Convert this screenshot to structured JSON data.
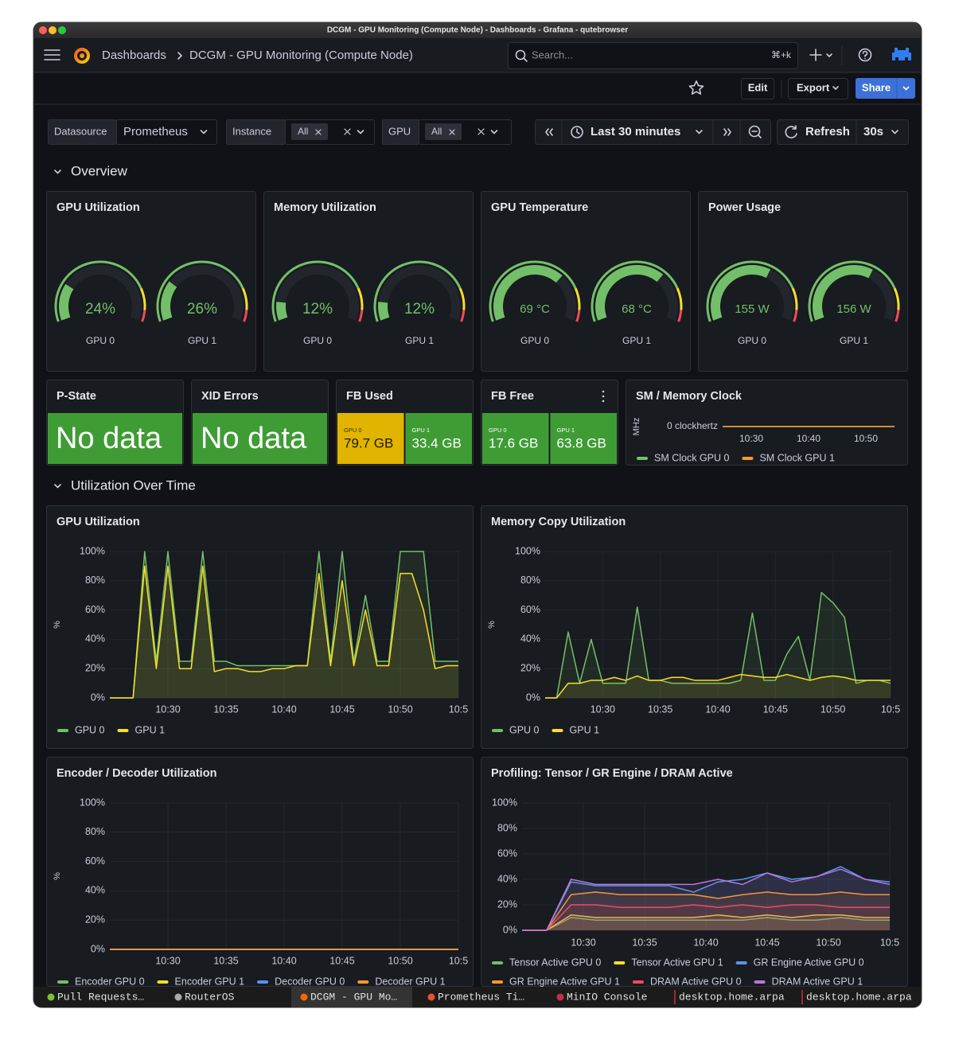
{
  "window_title": "DCGM - GPU Monitoring (Compute Node) - Dashboards - Grafana - qutebrowser",
  "nav": {
    "breadcrumb": [
      "Dashboards",
      "DCGM - GPU Monitoring (Compute Node)"
    ],
    "search_placeholder": "Search...",
    "search_shortcut": "⌘+k"
  },
  "actions": [
    "Edit",
    "Export",
    "Share"
  ],
  "variables": [
    {
      "label": "Datasource",
      "value": "Prometheus"
    },
    {
      "label": "Instance",
      "value": "All"
    },
    {
      "label": "GPU",
      "value": "All"
    }
  ],
  "time_range": "Last 30 minutes",
  "refresh": "Refresh",
  "refresh_interval": "30s",
  "rows": [
    "Overview",
    "Utilization Over Time"
  ],
  "chart_data": [
    {
      "type": "gauge",
      "title": "GPU Utilization",
      "categories": [
        "GPU 0",
        "GPU 1"
      ],
      "values": [
        24,
        26
      ],
      "value_labels": [
        "24%",
        "26%"
      ],
      "ylim": [
        0,
        100
      ],
      "color": "#73bf69"
    },
    {
      "type": "gauge",
      "title": "Memory Utilization",
      "categories": [
        "GPU 0",
        "GPU 1"
      ],
      "values": [
        12,
        12
      ],
      "value_labels": [
        "12%",
        "12%"
      ],
      "ylim": [
        0,
        100
      ],
      "color": "#73bf69"
    },
    {
      "type": "gauge",
      "title": "GPU Temperature",
      "categories": [
        "GPU 0",
        "GPU 1"
      ],
      "values": [
        69,
        68
      ],
      "value_labels": [
        "69 °C",
        "68 °C"
      ],
      "ylim": [
        0,
        100
      ],
      "color": "#73bf69"
    },
    {
      "type": "gauge",
      "title": "Power Usage",
      "categories": [
        "GPU 0",
        "GPU 1"
      ],
      "values": [
        155,
        156
      ],
      "value_labels": [
        "155 W",
        "156 W"
      ],
      "ylim": [
        0,
        250
      ],
      "color": "#73bf69"
    },
    {
      "type": "stat",
      "title": "P-State",
      "text": "No data",
      "color": "#3f9c35"
    },
    {
      "type": "stat",
      "title": "XID Errors",
      "text": "No data",
      "color": "#3f9c35"
    },
    {
      "type": "stat",
      "title": "FB Used",
      "categories": [
        "GPU 0",
        "GPU 1"
      ],
      "values": [
        79.7,
        33.4
      ],
      "value_labels": [
        "79.7 GB",
        "33.4 GB"
      ],
      "colors": [
        "#e0b400",
        "#3f9c35"
      ]
    },
    {
      "type": "stat",
      "title": "FB Free",
      "categories": [
        "GPU 0",
        "GPU 1"
      ],
      "values": [
        17.6,
        63.8
      ],
      "value_labels": [
        "17.6 GB",
        "63.8 GB"
      ],
      "colors": [
        "#3f9c35",
        "#3f9c35"
      ]
    },
    {
      "type": "line",
      "title": "SM / Memory Clock",
      "ylabel": "MHz",
      "ylim": [
        -1,
        1
      ],
      "yticks": [
        {
          "value": 0,
          "label": "0 clockhertz"
        }
      ],
      "xlim": [
        "10:25",
        "10:55"
      ],
      "xticks": [
        "10:30",
        "10:40",
        "10:50"
      ],
      "grid": false,
      "x": [
        "10:25",
        "10:55"
      ],
      "series": [
        {
          "name": "SM Clock GPU 0",
          "color": "#73bf69",
          "values": [
            0,
            0
          ]
        },
        {
          "name": "SM Clock GPU 1",
          "color": "#ff9830",
          "values": [
            0,
            0
          ]
        }
      ]
    },
    {
      "type": "line",
      "title": "GPU Utilization",
      "ylabel": "%",
      "ylim": [
        0,
        100
      ],
      "yticks": [
        {
          "value": 0,
          "label": "0%"
        },
        {
          "value": 20,
          "label": "20%"
        },
        {
          "value": 40,
          "label": "40%"
        },
        {
          "value": 60,
          "label": "60%"
        },
        {
          "value": 80,
          "label": "80%"
        },
        {
          "value": 100,
          "label": "100%"
        }
      ],
      "xlim": [
        "10:25",
        "10:55"
      ],
      "xticks": [
        "10:30",
        "10:35",
        "10:40",
        "10:45",
        "10:50",
        {
          "value": "10:55",
          "label": "10:5"
        }
      ],
      "grid": true,
      "x": [
        "10:25",
        "10:26",
        "10:27",
        "10:28",
        "10:29",
        "10:30",
        "10:31",
        "10:32",
        "10:33",
        "10:34",
        "10:35",
        "10:36",
        "10:37",
        "10:38",
        "10:39",
        "10:40",
        "10:41",
        "10:42",
        "10:43",
        "10:44",
        "10:45",
        "10:46",
        "10:47",
        "10:48",
        "10:49",
        "10:50",
        "10:51",
        "10:52",
        "10:53",
        "10:54",
        "10:55"
      ],
      "series": [
        {
          "name": "GPU 0",
          "color": "#73bf69",
          "values": [
            0,
            0,
            0,
            100,
            25,
            100,
            25,
            25,
            100,
            25,
            25,
            22,
            22,
            22,
            22,
            22,
            22,
            22,
            100,
            25,
            100,
            25,
            70,
            25,
            25,
            100,
            100,
            100,
            25,
            25,
            25
          ]
        },
        {
          "name": "GPU 1",
          "color": "#fade2a",
          "values": [
            0,
            0,
            0,
            90,
            20,
            90,
            20,
            20,
            90,
            18,
            20,
            20,
            18,
            18,
            20,
            20,
            22,
            22,
            85,
            22,
            80,
            22,
            60,
            22,
            22,
            85,
            85,
            60,
            20,
            22,
            22
          ]
        }
      ]
    },
    {
      "type": "line",
      "title": "Memory Copy Utilization",
      "ylabel": "%",
      "ylim": [
        0,
        100
      ],
      "yticks": [
        {
          "value": 0,
          "label": "0%"
        },
        {
          "value": 20,
          "label": "20%"
        },
        {
          "value": 40,
          "label": "40%"
        },
        {
          "value": 60,
          "label": "60%"
        },
        {
          "value": 80,
          "label": "80%"
        },
        {
          "value": 100,
          "label": "100%"
        }
      ],
      "xlim": [
        "10:25",
        "10:55"
      ],
      "xticks": [
        "10:30",
        "10:35",
        "10:40",
        "10:45",
        "10:50",
        {
          "value": "10:55",
          "label": "10:5"
        }
      ],
      "grid": true,
      "x": [
        "10:25",
        "10:26",
        "10:27",
        "10:28",
        "10:29",
        "10:30",
        "10:31",
        "10:32",
        "10:33",
        "10:34",
        "10:35",
        "10:36",
        "10:37",
        "10:38",
        "10:39",
        "10:40",
        "10:41",
        "10:42",
        "10:43",
        "10:44",
        "10:45",
        "10:46",
        "10:47",
        "10:48",
        "10:49",
        "10:50",
        "10:51",
        "10:52",
        "10:53",
        "10:54",
        "10:55"
      ],
      "series": [
        {
          "name": "GPU 0",
          "color": "#73bf69",
          "values": [
            0,
            0,
            45,
            10,
            40,
            10,
            10,
            10,
            62,
            12,
            12,
            10,
            10,
            10,
            10,
            10,
            10,
            12,
            58,
            12,
            12,
            30,
            42,
            12,
            72,
            65,
            55,
            10,
            12,
            12,
            10
          ]
        },
        {
          "name": "GPU 1",
          "color": "#fade2a",
          "values": [
            0,
            0,
            10,
            10,
            12,
            12,
            14,
            12,
            15,
            12,
            12,
            14,
            14,
            12,
            12,
            12,
            14,
            16,
            15,
            14,
            14,
            16,
            14,
            12,
            14,
            15,
            14,
            12,
            12,
            12,
            12
          ]
        }
      ]
    },
    {
      "type": "line",
      "title": "Encoder / Decoder Utilization",
      "ylabel": "%",
      "ylim": [
        0,
        100
      ],
      "yticks": [
        {
          "value": 0,
          "label": "0%"
        },
        {
          "value": 20,
          "label": "20%"
        },
        {
          "value": 40,
          "label": "40%"
        },
        {
          "value": 60,
          "label": "60%"
        },
        {
          "value": 80,
          "label": "80%"
        },
        {
          "value": 100,
          "label": "100%"
        }
      ],
      "xlim": [
        "10:25",
        "10:55"
      ],
      "xticks": [
        "10:30",
        "10:35",
        "10:40",
        "10:45",
        "10:50",
        {
          "value": "10:55",
          "label": "10:5"
        }
      ],
      "grid": true,
      "x": [
        "10:25",
        "10:55"
      ],
      "series": [
        {
          "name": "Encoder GPU 0",
          "color": "#73bf69",
          "values": [
            0,
            0
          ]
        },
        {
          "name": "Encoder GPU 1",
          "color": "#fade2a",
          "values": [
            0,
            0
          ]
        },
        {
          "name": "Decoder GPU 0",
          "color": "#5794f2",
          "values": [
            0,
            0
          ]
        },
        {
          "name": "Decoder GPU 1",
          "color": "#ff9830",
          "values": [
            0,
            0
          ]
        }
      ]
    },
    {
      "type": "line",
      "title": "Profiling: Tensor / GR Engine / DRAM Active",
      "ylim": [
        0,
        100
      ],
      "yticks": [
        {
          "value": 0,
          "label": "0%"
        },
        {
          "value": 20,
          "label": "20%"
        },
        {
          "value": 40,
          "label": "40%"
        },
        {
          "value": 60,
          "label": "60%"
        },
        {
          "value": 80,
          "label": "80%"
        },
        {
          "value": 100,
          "label": "100%"
        }
      ],
      "xlim": [
        "10:25",
        "10:55"
      ],
      "xticks": [
        "10:30",
        "10:35",
        "10:40",
        "10:45",
        "10:50",
        {
          "value": "10:55",
          "label": "10:5"
        }
      ],
      "grid": true,
      "x": [
        "10:25",
        "10:27",
        "10:29",
        "10:31",
        "10:33",
        "10:35",
        "10:37",
        "10:39",
        "10:41",
        "10:43",
        "10:45",
        "10:47",
        "10:49",
        "10:51",
        "10:53",
        "10:55"
      ],
      "series": [
        {
          "name": "Tensor Active GPU 0",
          "color": "#73bf69",
          "values": [
            0,
            0,
            10,
            8,
            8,
            8,
            8,
            8,
            8,
            8,
            10,
            8,
            8,
            10,
            8,
            8
          ]
        },
        {
          "name": "Tensor Active GPU 1",
          "color": "#fade2a",
          "values": [
            0,
            0,
            12,
            10,
            10,
            10,
            10,
            10,
            12,
            10,
            12,
            10,
            12,
            12,
            10,
            10
          ]
        },
        {
          "name": "GR Engine Active GPU 0",
          "color": "#5794f2",
          "values": [
            0,
            0,
            38,
            35,
            35,
            35,
            35,
            30,
            38,
            40,
            45,
            40,
            42,
            50,
            40,
            38
          ]
        },
        {
          "name": "GR Engine Active GPU 1",
          "color": "#ff9830",
          "values": [
            0,
            0,
            28,
            30,
            28,
            28,
            28,
            28,
            25,
            28,
            30,
            28,
            28,
            30,
            28,
            28
          ]
        },
        {
          "name": "DRAM Active GPU 0",
          "color": "#f2495c",
          "values": [
            0,
            0,
            20,
            20,
            18,
            18,
            18,
            20,
            18,
            20,
            18,
            20,
            20,
            18,
            18,
            18
          ]
        },
        {
          "name": "DRAM Active GPU 1",
          "color": "#b877d9",
          "values": [
            0,
            0,
            40,
            36,
            36,
            36,
            36,
            36,
            40,
            36,
            45,
            38,
            42,
            48,
            40,
            36
          ]
        }
      ]
    }
  ],
  "tabs": [
    "Pull Requests…",
    "RouterOS",
    "DCGM - GPU Mo…",
    "Prometheus Ti…",
    "MinIO Console",
    "desktop.home.arpa",
    "desktop.home.arpa"
  ]
}
